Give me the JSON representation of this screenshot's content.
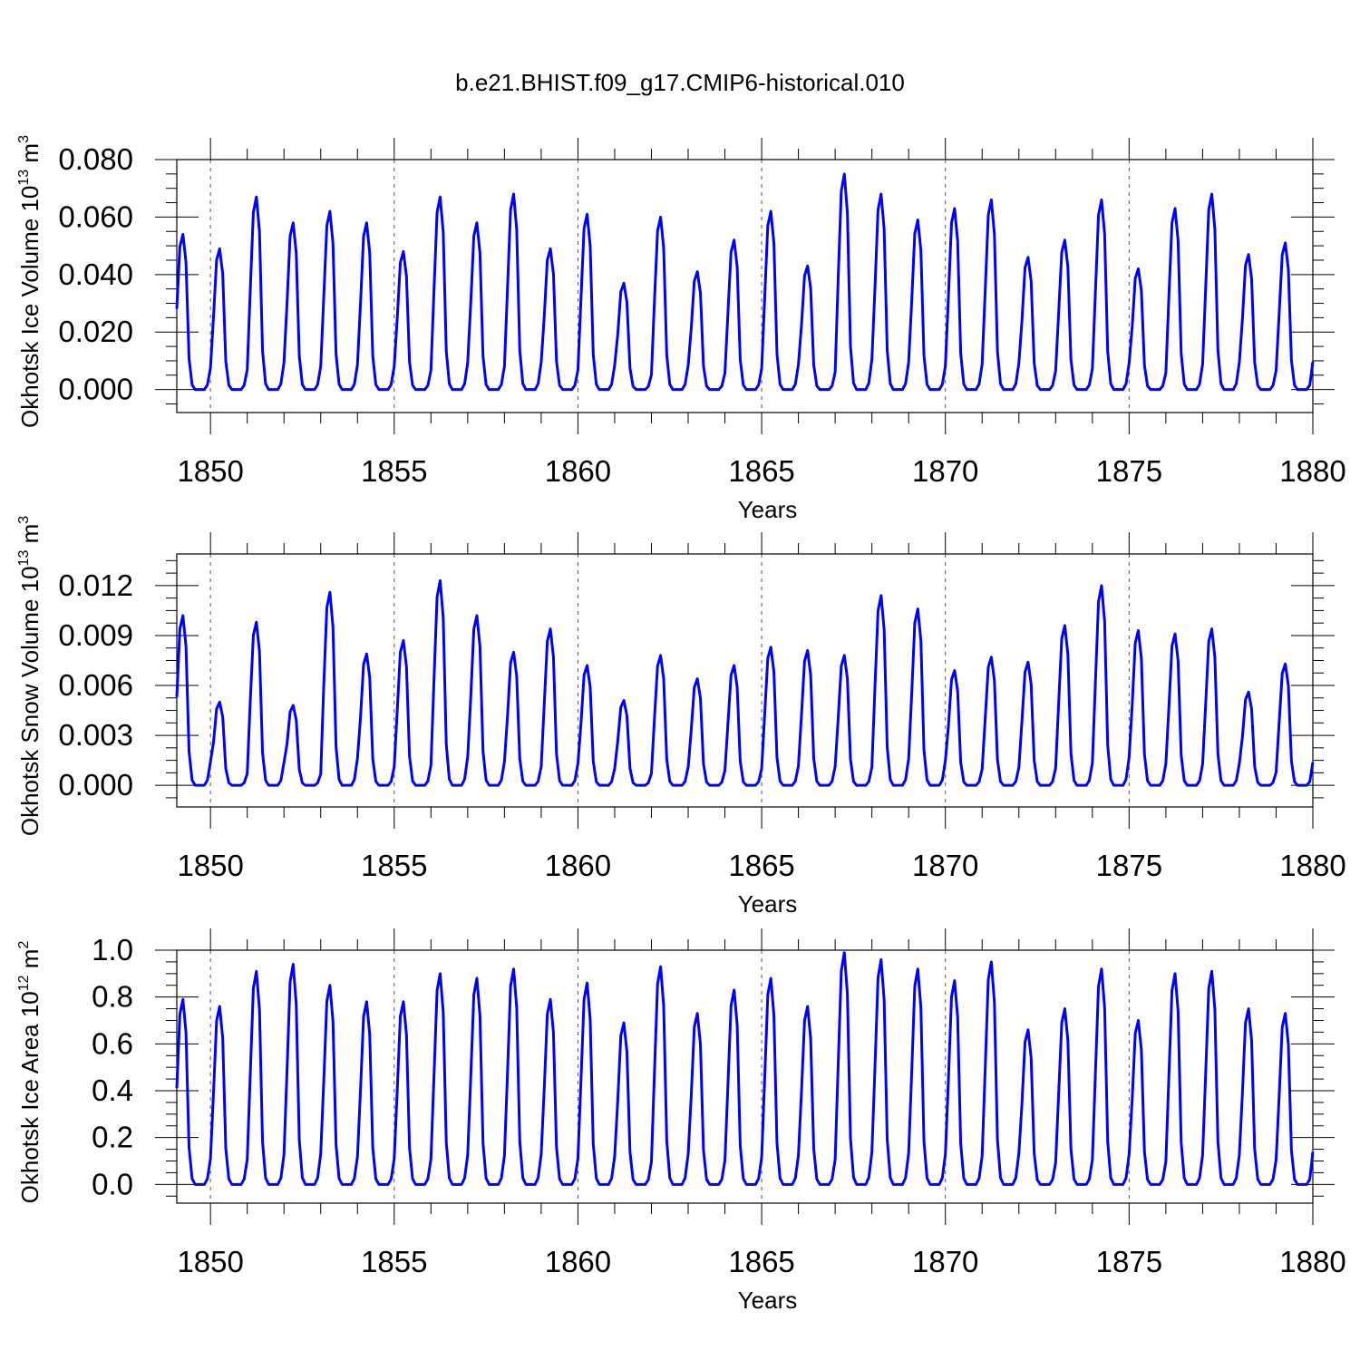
{
  "chart_data": {
    "type": "line",
    "title": "b.e21.BHIST.f09_g17.CMIP6-historical.010",
    "line_color": "#0000ff",
    "frame_color": "#000000",
    "gridline_color": "#555555",
    "start_year": 1849.0,
    "months_per_year": 12,
    "xlim": [
      1849.0833,
      1880.0
    ],
    "x_ticks": [
      1850,
      1855,
      1860,
      1865,
      1870,
      1875,
      1880
    ],
    "x_tick_labels": [
      "1850",
      "1855",
      "1860",
      "1865",
      "1870",
      "1875",
      "1880"
    ],
    "xlabel": "Years",
    "grid": "dashed vertical lines at major x ticks",
    "panels": [
      {
        "name": "ice-volume",
        "ylabel": "Okhotsk Ice Volume 10",
        "ylabel_exp": "13",
        "ylabel_unit": " m",
        "ylabel_unit_exp": "3",
        "ylim": [
          -0.008,
          0.08
        ],
        "y_ticks": [
          0.0,
          0.02,
          0.04,
          0.06,
          0.08
        ],
        "y_tick_labels": [
          "0.000",
          "0.020",
          "0.040",
          "0.060",
          "0.080"
        ],
        "peaks": [
          0.054,
          0.049,
          0.067,
          0.058,
          0.062,
          0.058,
          0.048,
          0.067,
          0.058,
          0.068,
          0.049,
          0.061,
          0.037,
          0.06,
          0.041,
          0.052,
          0.062,
          0.043,
          0.075,
          0.068,
          0.059,
          0.063,
          0.066,
          0.046,
          0.052,
          0.066,
          0.042,
          0.063,
          0.068,
          0.047,
          0.051
        ],
        "series_note": "monthly values, seasonal cycle peaking ~March each year, near 0 in summer-autumn"
      },
      {
        "name": "snow-volume",
        "ylabel": "Okhotsk Snow Volume 10",
        "ylabel_exp": "13",
        "ylabel_unit": " m",
        "ylabel_unit_exp": "3",
        "ylim": [
          -0.0013,
          0.0139
        ],
        "y_ticks": [
          0.0,
          0.003,
          0.006,
          0.009,
          0.012
        ],
        "y_tick_labels": [
          "0.000",
          "0.003",
          "0.006",
          "0.009",
          "0.012"
        ],
        "peaks": [
          0.0102,
          0.005,
          0.0098,
          0.0048,
          0.0116,
          0.0079,
          0.0087,
          0.0123,
          0.0102,
          0.008,
          0.0094,
          0.0072,
          0.0051,
          0.0078,
          0.0064,
          0.0072,
          0.0083,
          0.0081,
          0.0078,
          0.0114,
          0.0106,
          0.0069,
          0.0077,
          0.0074,
          0.0096,
          0.012,
          0.0093,
          0.0091,
          0.0094,
          0.0056,
          0.0073
        ],
        "series_note": "monthly values, seasonal cycle peaking ~March each year"
      },
      {
        "name": "ice-area",
        "ylabel": "Okhotsk Ice Area 10",
        "ylabel_exp": "12",
        "ylabel_unit": " m",
        "ylabel_unit_exp": "2",
        "ylim": [
          -0.08,
          1.0
        ],
        "y_ticks": [
          0.0,
          0.2,
          0.4,
          0.6,
          0.8,
          1.0
        ],
        "y_tick_labels": [
          "0.0",
          "0.2",
          "0.4",
          "0.6",
          "0.8",
          "1.0"
        ],
        "peaks": [
          0.79,
          0.76,
          0.91,
          0.94,
          0.85,
          0.78,
          0.78,
          0.9,
          0.88,
          0.92,
          0.79,
          0.86,
          0.69,
          0.93,
          0.73,
          0.83,
          0.88,
          0.76,
          0.99,
          0.96,
          0.92,
          0.87,
          0.95,
          0.66,
          0.75,
          0.92,
          0.7,
          0.9,
          0.91,
          0.75,
          0.73
        ],
        "series_note": "monthly values, seasonal cycle peaking ~March each year"
      }
    ]
  }
}
